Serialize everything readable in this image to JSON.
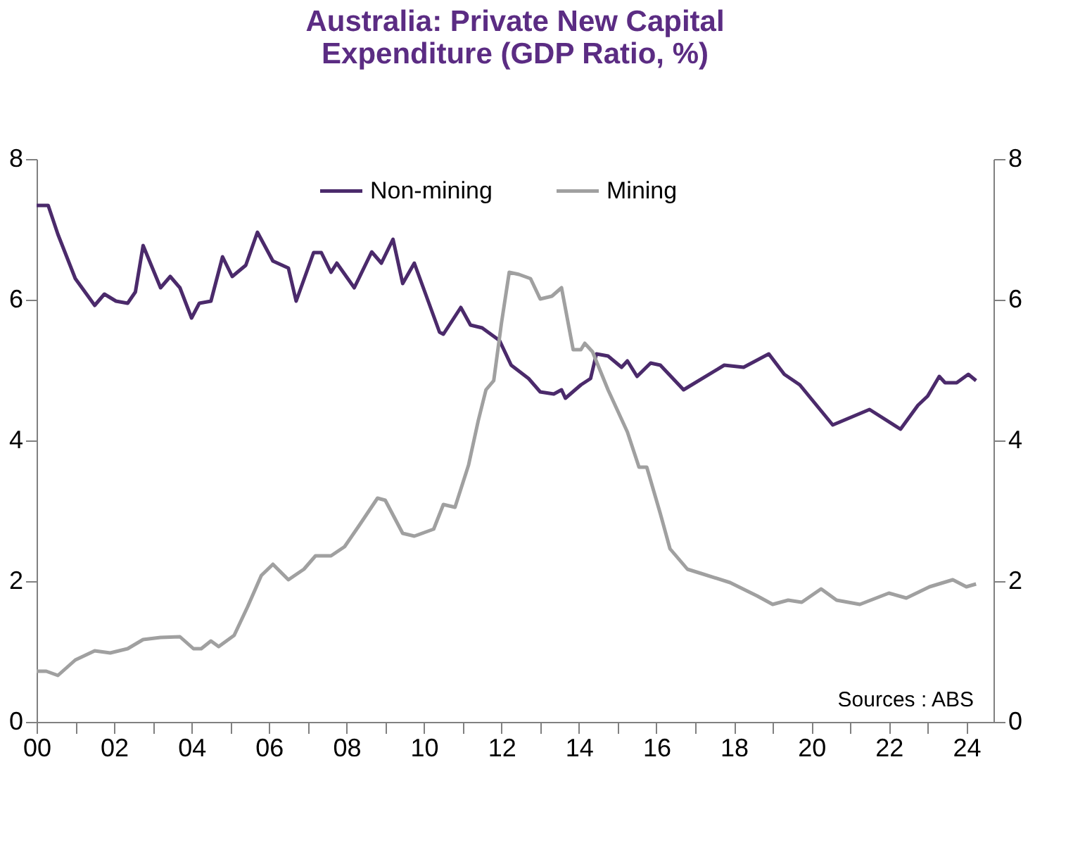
{
  "chart_data": {
    "type": "line",
    "title": "Australia: Private New Capital Expenditure (GDP Ratio, %)",
    "xlim": [
      2000,
      2024.7
    ],
    "xticks": [
      {
        "value": 2000,
        "label": "00"
      },
      {
        "value": 2001,
        "label": null
      },
      {
        "value": 2002,
        "label": "02"
      },
      {
        "value": 2003,
        "label": null
      },
      {
        "value": 2004,
        "label": "04"
      },
      {
        "value": 2005,
        "label": null
      },
      {
        "value": 2006,
        "label": "06"
      },
      {
        "value": 2007,
        "label": null
      },
      {
        "value": 2008,
        "label": "08"
      },
      {
        "value": 2009,
        "label": null
      },
      {
        "value": 2010,
        "label": "10"
      },
      {
        "value": 2011,
        "label": null
      },
      {
        "value": 2012,
        "label": "12"
      },
      {
        "value": 2013,
        "label": null
      },
      {
        "value": 2014,
        "label": "14"
      },
      {
        "value": 2015,
        "label": null
      },
      {
        "value": 2016,
        "label": "16"
      },
      {
        "value": 2017,
        "label": null
      },
      {
        "value": 2018,
        "label": "18"
      },
      {
        "value": 2019,
        "label": null
      },
      {
        "value": 2020,
        "label": "20"
      },
      {
        "value": 2021,
        "label": null
      },
      {
        "value": 2022,
        "label": "22"
      },
      {
        "value": 2023,
        "label": null
      },
      {
        "value": 2024,
        "label": "24"
      }
    ],
    "ylim": [
      0,
      8
    ],
    "yticks": [
      0,
      2,
      4,
      6,
      8
    ],
    "y2lim": [
      0,
      8
    ],
    "y2ticks": [
      0,
      2,
      4,
      6,
      8
    ],
    "grid": false,
    "legend": "top",
    "marker": "none",
    "line_style": "solid",
    "annotations": [
      "Sources : ABS"
    ],
    "series": [
      {
        "name": "Non-mining",
        "color": "#4b2a6b",
        "x": [
          2000.0,
          2000.3,
          2000.55,
          2001.0,
          2001.5,
          2001.75,
          2002.05,
          2002.35,
          2002.55,
          2002.75,
          2003.2,
          2003.45,
          2003.7,
          2004.0,
          2004.2,
          2004.5,
          2004.8,
          2005.05,
          2005.4,
          2005.7,
          2006.1,
          2006.5,
          2006.7,
          2007.15,
          2007.35,
          2007.6,
          2007.75,
          2008.2,
          2008.65,
          2008.9,
          2009.2,
          2009.45,
          2009.75,
          2010.4,
          2010.5,
          2010.95,
          2011.2,
          2011.5,
          2011.95,
          2012.25,
          2012.7,
          2013.0,
          2013.35,
          2013.55,
          2013.65,
          2014.05,
          2014.3,
          2014.45,
          2014.75,
          2015.1,
          2015.25,
          2015.5,
          2015.85,
          2016.1,
          2016.7,
          2017.75,
          2018.25,
          2018.9,
          2019.3,
          2019.7,
          2020.55,
          2021.5,
          2022.3,
          2022.75,
          2023.0,
          2023.3,
          2023.45,
          2023.75,
          2024.05,
          2024.25
        ],
        "values": [
          7.34,
          7.34,
          6.93,
          6.3,
          5.92,
          6.08,
          5.98,
          5.95,
          6.11,
          6.77,
          6.17,
          6.33,
          6.17,
          5.74,
          5.95,
          5.98,
          6.61,
          6.33,
          6.49,
          6.96,
          6.55,
          6.45,
          5.98,
          6.67,
          6.67,
          6.39,
          6.52,
          6.17,
          6.68,
          6.52,
          6.86,
          6.23,
          6.52,
          5.54,
          5.51,
          5.89,
          5.64,
          5.6,
          5.42,
          5.07,
          4.88,
          4.69,
          4.66,
          4.72,
          4.6,
          4.79,
          4.88,
          5.23,
          5.2,
          5.04,
          5.13,
          4.91,
          5.1,
          5.07,
          4.72,
          5.07,
          5.04,
          5.23,
          4.94,
          4.79,
          4.22,
          4.44,
          4.16,
          4.5,
          4.63,
          4.91,
          4.82,
          4.82,
          4.94,
          4.85
        ]
      },
      {
        "name": "Mining",
        "color": "#a0a0a0",
        "axis": "y2",
        "x": [
          2000.0,
          2000.25,
          2000.55,
          2001.0,
          2001.5,
          2001.9,
          2002.35,
          2002.75,
          2003.2,
          2003.7,
          2004.05,
          2004.25,
          2004.5,
          2004.7,
          2005.1,
          2005.45,
          2005.8,
          2006.1,
          2006.5,
          2006.9,
          2007.2,
          2007.6,
          2007.95,
          2008.3,
          2008.8,
          2009.0,
          2009.45,
          2009.75,
          2010.25,
          2010.5,
          2010.8,
          2011.15,
          2011.4,
          2011.6,
          2011.8,
          2012.0,
          2012.2,
          2012.45,
          2012.75,
          2013.0,
          2013.3,
          2013.55,
          2013.85,
          2014.05,
          2014.15,
          2014.35,
          2014.75,
          2015.25,
          2015.55,
          2015.75,
          2016.1,
          2016.35,
          2016.8,
          2017.15,
          2017.9,
          2018.6,
          2019.0,
          2019.4,
          2019.75,
          2020.25,
          2020.65,
          2021.25,
          2022.0,
          2022.45,
          2023.05,
          2023.65,
          2024.0,
          2024.25
        ],
        "values": [
          0.72,
          0.72,
          0.66,
          0.88,
          1.01,
          0.98,
          1.04,
          1.17,
          1.2,
          1.21,
          1.04,
          1.04,
          1.15,
          1.07,
          1.23,
          1.64,
          2.08,
          2.24,
          2.02,
          2.17,
          2.36,
          2.36,
          2.49,
          2.77,
          3.18,
          3.15,
          2.68,
          2.64,
          2.74,
          3.09,
          3.05,
          3.65,
          4.28,
          4.72,
          4.85,
          5.67,
          6.39,
          6.36,
          6.3,
          6.01,
          6.05,
          6.17,
          5.29,
          5.29,
          5.38,
          5.26,
          4.72,
          4.12,
          3.62,
          3.62,
          2.96,
          2.46,
          2.17,
          2.11,
          1.98,
          1.79,
          1.67,
          1.73,
          1.7,
          1.89,
          1.73,
          1.67,
          1.83,
          1.76,
          1.92,
          2.02,
          1.92,
          1.96
        ]
      }
    ]
  }
}
